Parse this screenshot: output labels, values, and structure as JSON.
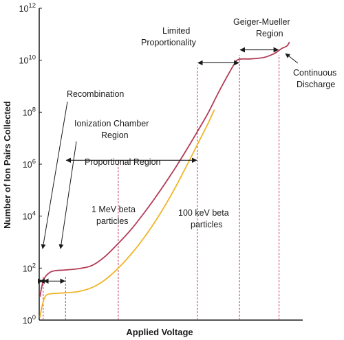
{
  "chart_data": {
    "type": "line",
    "title": "",
    "xlabel": "Applied Voltage",
    "ylabel": "Number of Ion Pairs Collected",
    "y_scale": "log10",
    "ylim_exponent": [
      0,
      12
    ],
    "y_ticks": [
      {
        "base": "10",
        "exp": "0"
      },
      {
        "base": "10",
        "exp": "2"
      },
      {
        "base": "10",
        "exp": "4"
      },
      {
        "base": "10",
        "exp": "6"
      },
      {
        "base": "10",
        "exp": "8"
      },
      {
        "base": "10",
        "exp": "10"
      },
      {
        "base": "10",
        "exp": "12"
      }
    ],
    "xlim": [
      0,
      100
    ],
    "x_ticks_shown": false,
    "grid": false,
    "series": [
      {
        "name": "1 MeV beta particles",
        "color": "#b23a56",
        "points": [
          [
            0.3,
            0.9
          ],
          [
            1,
            1.3
          ],
          [
            2,
            1.62
          ],
          [
            4,
            1.83
          ],
          [
            6,
            1.9
          ],
          [
            10,
            1.93
          ],
          [
            15,
            1.98
          ],
          [
            20,
            2.1
          ],
          [
            25,
            2.45
          ],
          [
            30,
            2.95
          ],
          [
            35,
            3.5
          ],
          [
            40,
            4.15
          ],
          [
            45,
            4.85
          ],
          [
            50,
            5.6
          ],
          [
            55,
            6.4
          ],
          [
            60,
            7.25
          ],
          [
            64,
            7.95
          ],
          [
            68,
            8.75
          ],
          [
            72,
            9.5
          ],
          [
            74,
            9.85
          ],
          [
            75,
            10.0
          ],
          [
            77,
            10.05
          ],
          [
            80,
            10.05
          ],
          [
            85,
            10.1
          ],
          [
            88,
            10.2
          ],
          [
            90,
            10.3
          ],
          [
            92,
            10.45
          ],
          [
            94,
            10.55
          ],
          [
            95,
            10.7
          ]
        ]
      },
      {
        "name": "100 keV beta particles",
        "color": "#f0b428",
        "points": [
          [
            0.3,
            0.1
          ],
          [
            1,
            0.5
          ],
          [
            2,
            0.85
          ],
          [
            3,
            0.98
          ],
          [
            5,
            1.02
          ],
          [
            10,
            1.05
          ],
          [
            15,
            1.1
          ],
          [
            20,
            1.25
          ],
          [
            25,
            1.55
          ],
          [
            30,
            2.0
          ],
          [
            35,
            2.55
          ],
          [
            40,
            3.2
          ],
          [
            45,
            3.95
          ],
          [
            50,
            4.8
          ],
          [
            55,
            5.75
          ],
          [
            60,
            6.75
          ],
          [
            64,
            7.55
          ],
          [
            66.5,
            8.1
          ]
        ]
      }
    ],
    "regions": [
      {
        "boundary_x": 1.5
      },
      {
        "boundary_x": 10
      },
      {
        "boundary_x": 30
      },
      {
        "boundary_x": 60
      },
      {
        "boundary_x": 76
      },
      {
        "boundary_x": 91
      }
    ],
    "region_arrows": [
      {
        "x1": 0,
        "x2": 1.5,
        "y": 1.5
      },
      {
        "x1": 1.5,
        "x2": 10,
        "y": 1.5
      },
      {
        "x1": 10,
        "x2": 60,
        "y": 6.15
      },
      {
        "x1": 60,
        "x2": 76,
        "y": 9.9
      },
      {
        "x1": 76,
        "x2": 91,
        "y": 10.4
      }
    ],
    "annotations": {
      "recombination": "Recombination",
      "ionization_line1": "Ionization Chamber",
      "ionization_line2": "Region",
      "proportional": "Proportional Region",
      "limited_line1": "Limited",
      "limited_line2": "Proportionality",
      "geiger_line1": "Geiger-Mueller",
      "geiger_line2": "Region",
      "continuous_line1": "Continuous",
      "continuous_line2": "Discharge",
      "mev_line1": "1 MeV beta",
      "mev_line2": "particles",
      "kev_line1": "100 keV beta",
      "kev_line2": "particles"
    }
  }
}
